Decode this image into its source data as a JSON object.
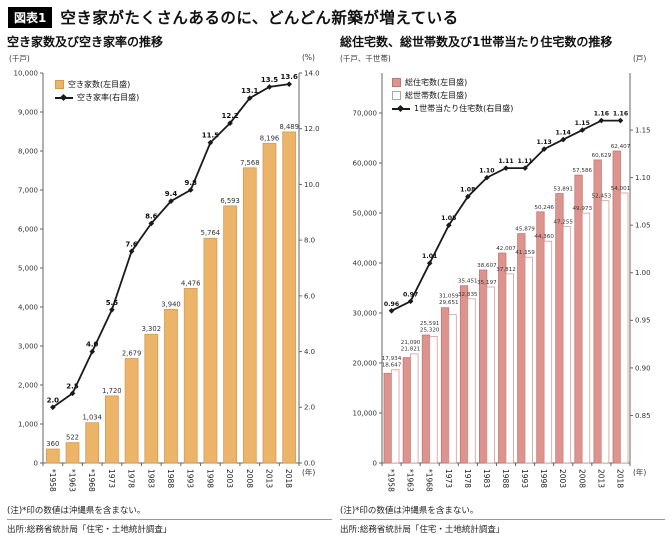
{
  "header": {
    "badge": "図表1",
    "title": "空き家がたくさんあるのに、どんどん新築が増えている"
  },
  "colors": {
    "badge_bg": "#000000",
    "badge_text": "#FFFFFF",
    "axis": "#666666",
    "trend_line": "#1A1A1A",
    "vacant_bar_fill": "#EBB469",
    "vacant_bar_border": "#D49A4E",
    "dwellings_bar_fill": "#DD948F",
    "dwellings_bar_border": "#C0736F",
    "households_bar_fill": "#FFFFFF",
    "households_bar_border": "#D5948F"
  },
  "footers": [
    {
      "note": "(注)*印の数値は沖縄県を含まない。",
      "source": "出所:総務省統計局「住宅・土地統計調査」"
    },
    {
      "note": "(注)*印の数値は沖縄県を含まない。",
      "source": "出所:総務省統計局「住宅・土地統計調査」"
    }
  ],
  "chart_data": [
    {
      "type": "bar+line",
      "title": "空き家数及び空き家率の推移",
      "categories": [
        "*1958",
        "*1963",
        "*1968",
        "1973",
        "1978",
        "1983",
        "1988",
        "1993",
        "1998",
        "2003",
        "2008",
        "2013",
        "2018"
      ],
      "x_axis_label": "(年)",
      "legend_position": "top-left-inside",
      "grid": false,
      "series": [
        {
          "key": "akiya-count",
          "name": "空き家数(左目盛)",
          "type": "bar",
          "axis": "left",
          "values": [
            360,
            522,
            1034,
            1720,
            2679,
            3302,
            3940,
            4476,
            5764,
            6593,
            7568,
            8196,
            8489
          ],
          "labels": [
            "360",
            "522",
            "1,034",
            "1,720",
            "2,679",
            "3,302",
            "3,940",
            "4,476",
            "5,764",
            "6,593",
            "7,568",
            "8,196",
            "8,489"
          ]
        },
        {
          "key": "akiya-rate",
          "name": "空き家率(右目盛)",
          "type": "line",
          "axis": "right",
          "values": [
            2.0,
            2.5,
            4.0,
            5.5,
            7.6,
            8.6,
            9.4,
            9.8,
            11.5,
            12.2,
            13.1,
            13.5,
            13.6
          ],
          "labels": [
            "2.0",
            "2.5",
            "4.0",
            "5.5",
            "7.6",
            "8.6",
            "9.4",
            "9.8",
            "11.5",
            "12.2",
            "13.1",
            "13.5",
            "13.6"
          ]
        }
      ],
      "left_axis": {
        "label": "(千戸)",
        "min": 0,
        "max": 10000,
        "tick_values": [
          0,
          1000,
          2000,
          3000,
          4000,
          5000,
          6000,
          7000,
          8000,
          9000,
          10000
        ],
        "tick_labels": [
          "0",
          "1,000",
          "2,000",
          "3,000",
          "4,000",
          "5,000",
          "6,000",
          "7,000",
          "8,000",
          "9,000",
          "10,000"
        ]
      },
      "right_axis": {
        "label": "(%)",
        "min": 0,
        "max": 14,
        "tick_values": [
          0,
          2,
          4,
          6,
          8,
          10,
          12,
          14
        ],
        "tick_labels": [
          "0.0",
          "2.0",
          "4.0",
          "6.0",
          "8.0",
          "10.0",
          "12.0",
          "14.0"
        ]
      }
    },
    {
      "type": "bar+line",
      "title": "総住宅数、総世帯数及び1世帯当たり住宅数の推移",
      "categories": [
        "*1958",
        "*1963",
        "*1968",
        "1973",
        "1978",
        "1983",
        "1988",
        "1993",
        "1998",
        "2003",
        "2008",
        "2013",
        "2018"
      ],
      "x_axis_label": "(年)",
      "legend_position": "top-left-inside",
      "grid": false,
      "series": [
        {
          "key": "total-dwellings",
          "name": "総住宅数(左目盛)",
          "type": "bar",
          "axis": "left",
          "values": [
            17934,
            21090,
            25591,
            31059,
            35451,
            38607,
            42007,
            45879,
            50246,
            53891,
            57586,
            60629,
            62407
          ],
          "labels": [
            "17,934",
            "21,090",
            "25,591",
            "31,059",
            "35,451",
            "38,607",
            "42,007",
            "45,879",
            "50,246",
            "53,891",
            "57,586",
            "60,629",
            "62,407"
          ]
        },
        {
          "key": "total-households",
          "name": "総世帯数(左目盛)",
          "type": "bar",
          "axis": "left",
          "values": [
            18647,
            21821,
            25320,
            29651,
            32835,
            35197,
            37812,
            41159,
            44360,
            47255,
            49973,
            52453,
            54001
          ],
          "labels": [
            "18,647",
            "21,821",
            "25,320",
            "29,651",
            "32,835",
            "35,197",
            "37,812",
            "41,159",
            "44,360",
            "47,255",
            "49,973",
            "52,453",
            "54,001"
          ]
        },
        {
          "key": "dwellings-per-household",
          "name": "1世帯当たり住宅数(右目盛)",
          "type": "line",
          "axis": "right",
          "values": [
            0.96,
            0.97,
            1.01,
            1.05,
            1.08,
            1.1,
            1.11,
            1.11,
            1.13,
            1.14,
            1.15,
            1.16,
            1.16
          ],
          "labels": [
            "0.96",
            "0.97",
            "1.01",
            "1.05",
            "1.08",
            "1.10",
            "1.11",
            "1.11",
            "1.13",
            "1.14",
            "1.15",
            "1.16",
            "1.16"
          ]
        }
      ],
      "left_axis": {
        "label": "(千戸、千世帯)",
        "min": 0,
        "max": 78000,
        "tick_values": [
          0,
          10000,
          20000,
          30000,
          40000,
          50000,
          60000,
          70000
        ],
        "tick_labels": [
          "0",
          "10,000",
          "20,000",
          "30,000",
          "40,000",
          "50,000",
          "60,000",
          "70,000"
        ]
      },
      "right_axis": {
        "label": "(戸)",
        "min": 0.8,
        "max": 1.21,
        "tick_values": [
          0.85,
          0.9,
          0.95,
          1.0,
          1.05,
          1.1,
          1.15
        ],
        "tick_labels": [
          "0.85",
          "0.90",
          "0.95",
          "1.00",
          "1.05",
          "1.10",
          "1.15"
        ]
      }
    }
  ]
}
